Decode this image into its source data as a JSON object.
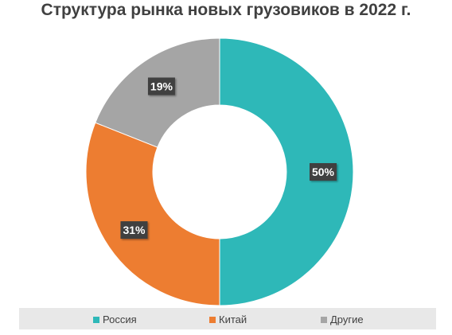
{
  "chart_data": {
    "type": "pie",
    "variant": "donut",
    "title": "Структура рынка новых грузовиков в 2022 г.",
    "categories": [
      "Россия",
      "Китай",
      "Другие"
    ],
    "values": [
      50,
      31,
      19
    ],
    "labels": [
      "50%",
      "31%",
      "19%"
    ],
    "colors": [
      "#2eb8b8",
      "#ed7d31",
      "#a5a5a5"
    ],
    "legend_position": "bottom",
    "data_label_style": "dark-box"
  }
}
